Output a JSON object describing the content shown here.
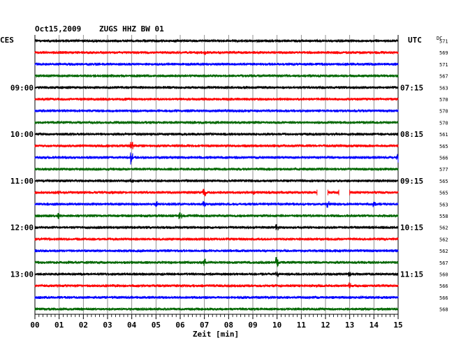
{
  "header": {
    "date": "Oct15,2009",
    "station": "ZUGS HHZ BW 01",
    "left_zone": "CES",
    "right_zone": "UTC",
    "dc_label": "DC"
  },
  "chart_data": {
    "type": "line",
    "title": "Oct15,2009  ZUGS HHZ BW 01",
    "xlabel": "Zeit [min]",
    "x_ticks": [
      "00",
      "01",
      "02",
      "03",
      "04",
      "05",
      "06",
      "07",
      "08",
      "09",
      "10",
      "11",
      "12",
      "13",
      "14",
      "15"
    ],
    "xlim": [
      0,
      15
    ],
    "grid": true,
    "trace_colors": [
      "#000000",
      "#ff0000",
      "#0000ff",
      "#006600"
    ],
    "left_time_labels": [
      {
        "row": 4,
        "text": "09:00"
      },
      {
        "row": 8,
        "text": "10:00"
      },
      {
        "row": 12,
        "text": "11:00"
      },
      {
        "row": 16,
        "text": "12:00"
      },
      {
        "row": 20,
        "text": "13:00"
      }
    ],
    "right_time_labels": [
      {
        "row": 4,
        "text": "07:15"
      },
      {
        "row": 8,
        "text": "08:15"
      },
      {
        "row": 12,
        "text": "09:15"
      },
      {
        "row": 16,
        "text": "10:15"
      },
      {
        "row": 20,
        "text": "11:15"
      }
    ],
    "dc_offsets": [
      "571",
      "569",
      "571",
      "567",
      "563",
      "570",
      "570",
      "570",
      "561",
      "565",
      "566",
      "577",
      "565",
      "565",
      "563",
      "558",
      "562",
      "562",
      "562",
      "567",
      "560",
      "566",
      "566",
      "568"
    ],
    "events": [
      {
        "row": 1,
        "minute": 7.0,
        "amp": 3
      },
      {
        "row": 5,
        "minute": 7.0,
        "amp": 3
      },
      {
        "row": 9,
        "minute": 4.0,
        "amp": 6
      },
      {
        "row": 10,
        "minute": 4.0,
        "amp": 10
      },
      {
        "row": 10,
        "minute": 15.0,
        "amp": 7
      },
      {
        "row": 12,
        "minute": 4.0,
        "amp": 3
      },
      {
        "row": 13,
        "minute": 1.0,
        "amp": 3
      },
      {
        "row": 13,
        "minute": 7.0,
        "amp": 5
      },
      {
        "row": 13,
        "minute": 9.0,
        "amp": 3
      },
      {
        "row": 13,
        "minute": 11.8,
        "amp": 5
      },
      {
        "row": 14,
        "minute": 5.0,
        "amp": 4
      },
      {
        "row": 14,
        "minute": 7.0,
        "amp": 4
      },
      {
        "row": 14,
        "minute": 12.1,
        "amp": 5
      },
      {
        "row": 14,
        "minute": 14.0,
        "amp": 4
      },
      {
        "row": 15,
        "minute": 1.0,
        "amp": 5
      },
      {
        "row": 15,
        "minute": 6.0,
        "amp": 6
      },
      {
        "row": 16,
        "minute": 10.0,
        "amp": 6
      },
      {
        "row": 19,
        "minute": 7.0,
        "amp": 5
      },
      {
        "row": 19,
        "minute": 10.0,
        "amp": 9
      },
      {
        "row": 20,
        "minute": 10.0,
        "amp": 4
      },
      {
        "row": 20,
        "minute": 13.0,
        "amp": 4
      },
      {
        "row": 21,
        "minute": 13.0,
        "amp": 5
      }
    ],
    "gaps": [
      {
        "row": 13,
        "from": 11.65,
        "to": 12.1
      },
      {
        "row": 13,
        "from": 12.55,
        "to": 13.0
      }
    ]
  }
}
